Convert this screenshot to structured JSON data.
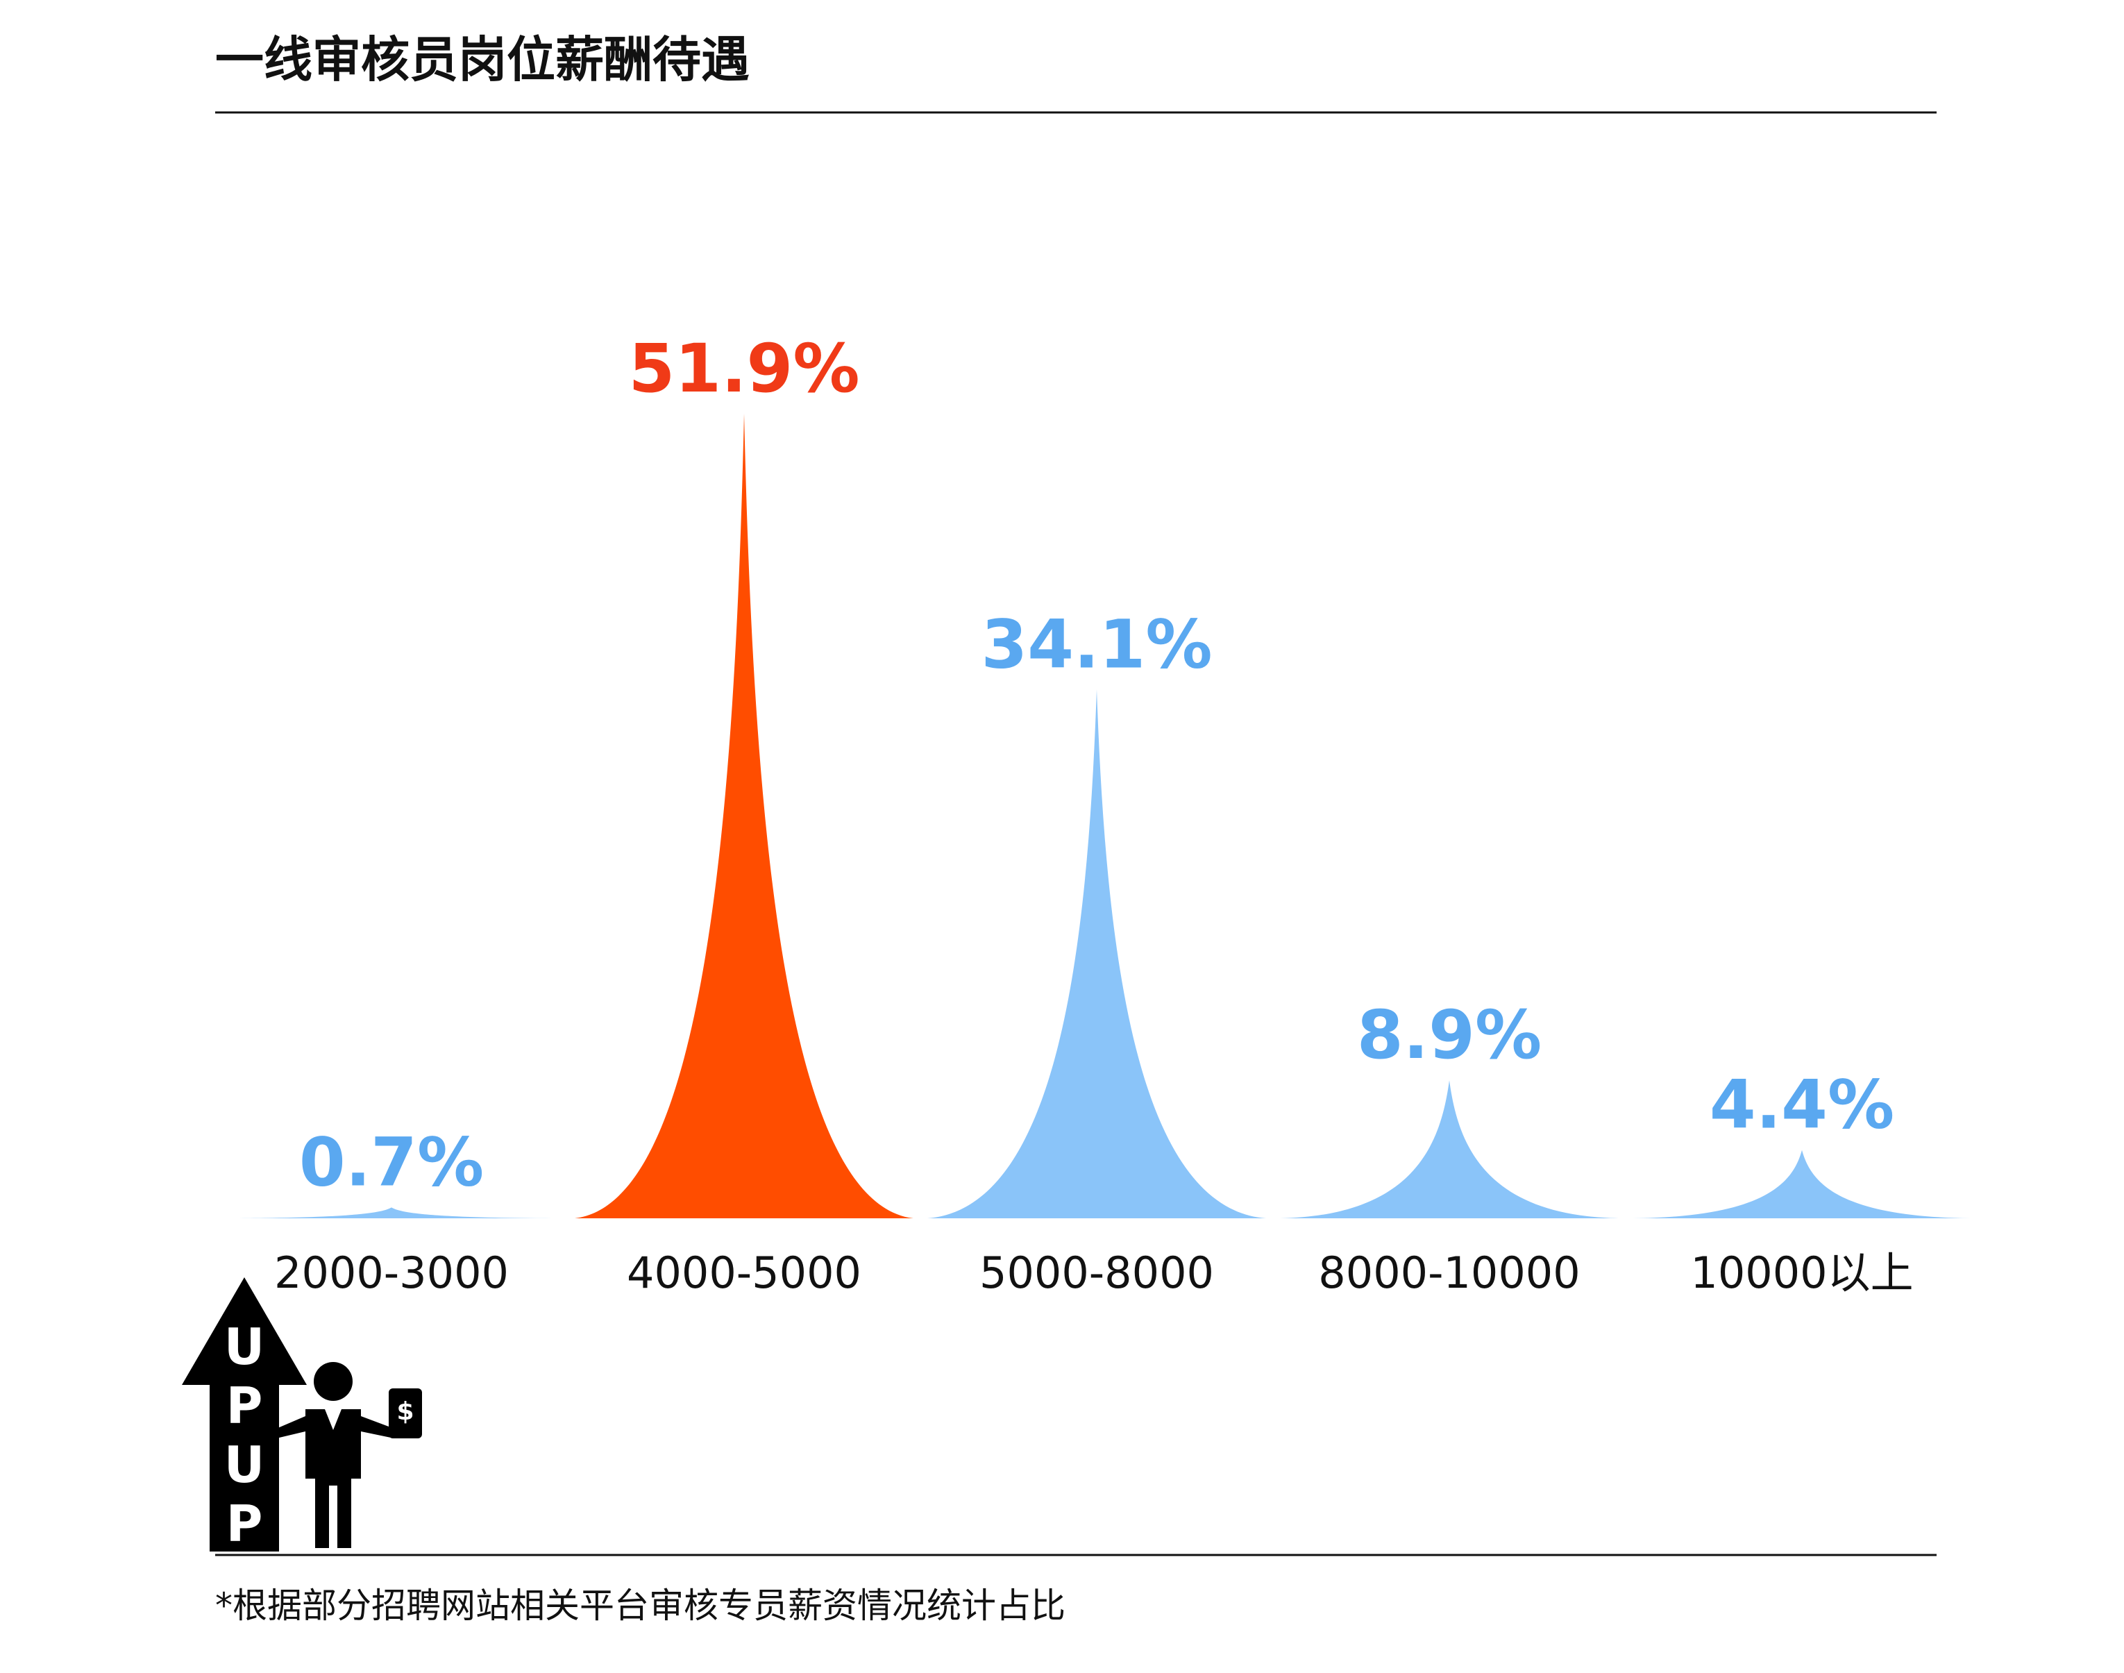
{
  "title": "一线审核员岗位薪酬待遇",
  "footnote": "*根据部分招聘网站相关平台审核专员薪资情况统计占比",
  "icon": {
    "name": "up-arrow-businessman-icon",
    "letters": [
      "U",
      "P",
      "U",
      "P"
    ],
    "badge": "$"
  },
  "colors": {
    "highlight": "#FF4D00",
    "series": "#7DBEF8",
    "label_blue": "#5AA8F0",
    "label_red": "#F03A17",
    "text": "#111111"
  },
  "chart_data": {
    "type": "area",
    "categories": [
      "2000-3000",
      "4000-5000",
      "5000-8000",
      "8000-10000",
      "10000以上"
    ],
    "values": [
      0.7,
      51.9,
      34.1,
      8.9,
      4.4
    ],
    "value_labels": [
      "0.7%",
      "51.9%",
      "34.1%",
      "8.9%",
      "4.4%"
    ],
    "highlight_index": 1,
    "ylim": [
      0,
      60
    ]
  }
}
